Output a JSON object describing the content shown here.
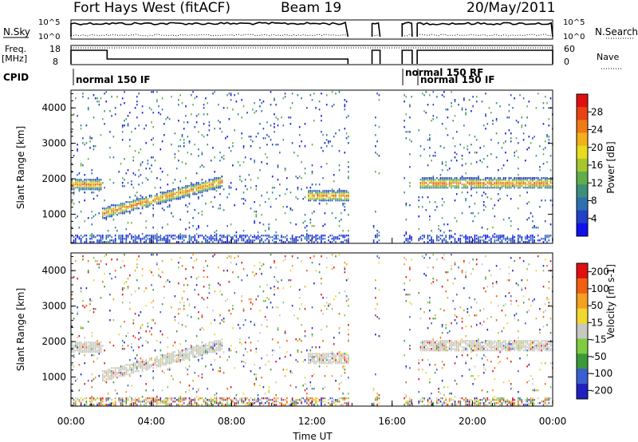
{
  "header": {
    "title": "Fort Hays West (fitACF)",
    "beam": "Beam 19",
    "date": "20/May/2011"
  },
  "top_panels": {
    "nsky_label": "N.Sky",
    "nsearch_label": "N.Search",
    "n_ticks": [
      "10^5",
      "10^0"
    ],
    "freq_label": "Freq.",
    "freq_unit": "[MHz]",
    "freq_ticks": [
      "18",
      "8"
    ],
    "nave_label": "Nave",
    "nave_ticks": [
      "60",
      "0"
    ],
    "cpid_label": "CPID",
    "cpid_entries": [
      "normal 150 IF",
      "normal 150 RF",
      "normal 150 IF"
    ]
  },
  "chart_data": [
    {
      "type": "heatmap",
      "name": "power",
      "ylabel": "Slant Range [km]",
      "yticks": [
        "1000",
        "2000",
        "3000",
        "4000"
      ],
      "ylim": [
        180,
        4500
      ],
      "xlim": [
        0,
        24
      ],
      "colorbar": {
        "label": "Power [dB]",
        "ticks": [
          "4",
          "8",
          "12",
          "16",
          "20",
          "24",
          "28"
        ],
        "colors": [
          "#1010ee",
          "#2040c8",
          "#2e6fb0",
          "#3c8f78",
          "#5fae4a",
          "#a6c82e",
          "#e8dc1e",
          "#f4b01a",
          "#f07a14",
          "#e84412",
          "#e01010"
        ]
      },
      "features": [
        {
          "desc": "echo band",
          "t_start": 0.0,
          "t_end": 1.5,
          "range_start": 1650,
          "range_end": 2000
        },
        {
          "desc": "echo band",
          "t_start": 1.5,
          "t_end": 7.5,
          "range_start": 1000,
          "range_end": 1900
        },
        {
          "desc": "echo band",
          "t_start": 11.8,
          "t_end": 13.8,
          "range_start": 1300,
          "range_end": 1700
        },
        {
          "desc": "echo band",
          "t_start": 17.3,
          "t_end": 24.0,
          "range_start": 1600,
          "range_end": 2100
        }
      ]
    },
    {
      "type": "heatmap",
      "name": "velocity",
      "ylabel": "Slant Range [km]",
      "yticks": [
        "1000",
        "2000",
        "3000",
        "4000"
      ],
      "ylim": [
        180,
        4500
      ],
      "xlim": [
        0,
        24
      ],
      "xlabel": "Time UT",
      "xticks": [
        "00:00",
        "04:00",
        "08:00",
        "12:00",
        "16:00",
        "20:00",
        "00:00"
      ],
      "colorbar": {
        "label": "Velocity [m s-1]",
        "ticks": [
          "200",
          "100",
          "50",
          "15",
          "-15",
          "-50",
          "-100",
          "-200"
        ],
        "colors": [
          "#2020c0",
          "#3a5fd0",
          "#3a9a3a",
          "#80cc40",
          "#c8c8c0",
          "#f0d830",
          "#f4a020",
          "#f06010",
          "#e01010"
        ]
      }
    }
  ]
}
